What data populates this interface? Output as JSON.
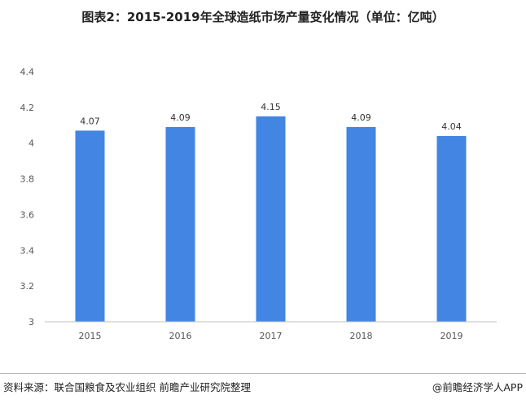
{
  "header": {
    "title": "图表2：2015-2019年全球造纸市场产量变化情况（单位：亿吨）"
  },
  "footer": {
    "source": "资料来源：联合国粮食及农业组织 前瞻产业研究院整理",
    "brand": "@前瞻经济学人APP"
  },
  "colors": {
    "bar": "#4285e2",
    "axis": "#bfbfbf"
  },
  "chart_data": {
    "type": "bar",
    "title": "图表2：2015-2019年全球造纸市场产量变化情况（单位：亿吨）",
    "categories": [
      "2015",
      "2016",
      "2017",
      "2018",
      "2019"
    ],
    "values": [
      4.07,
      4.09,
      4.15,
      4.09,
      4.04
    ],
    "value_labels": [
      "4.07",
      "4.09",
      "4.15",
      "4.09",
      "4.04"
    ],
    "y_ticks": [
      3,
      3.2,
      3.4,
      3.6,
      3.8,
      4,
      4.2,
      4.4
    ],
    "y_tick_labels": [
      "3",
      "3.2",
      "3.4",
      "3.6",
      "3.8",
      "4",
      "4.2",
      "4.4"
    ],
    "ylim": [
      3,
      4.4
    ],
    "xlabel": "",
    "ylabel": "",
    "grid": false,
    "legend": "none"
  }
}
